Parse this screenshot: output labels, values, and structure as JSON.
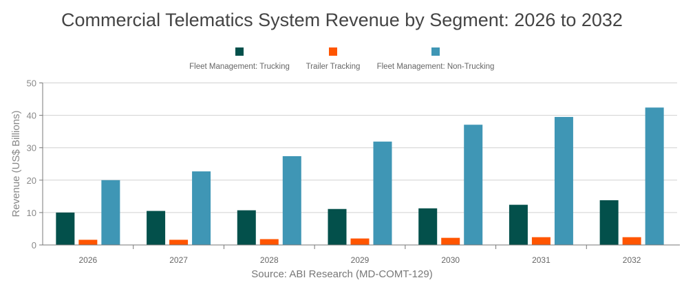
{
  "chart_data": {
    "type": "bar",
    "title": "Commercial Telematics System Revenue by Segment: 2026 to 2032",
    "source": "Source: ABI Research (MD-COMT-129)",
    "xlabel": "",
    "ylabel": "Revenue (US$ Billions)",
    "ylim": [
      0,
      50
    ],
    "yticks": [
      0,
      10,
      20,
      30,
      40,
      50
    ],
    "grid": true,
    "legend_position": "top",
    "categories": [
      "2026",
      "2027",
      "2028",
      "2029",
      "2030",
      "2031",
      "2032"
    ],
    "series": [
      {
        "name": "Fleet Management: Trucking",
        "color": "#03504b",
        "values": [
          10.0,
          10.5,
          10.7,
          11.1,
          11.3,
          12.4,
          13.8
        ]
      },
      {
        "name": "Trailer Tracking",
        "color": "#ff5500",
        "values": [
          1.6,
          1.6,
          1.8,
          2.0,
          2.2,
          2.4,
          2.4
        ]
      },
      {
        "name": "Fleet Management: Non-Trucking",
        "color": "#3f96b5",
        "values": [
          20.0,
          22.7,
          27.4,
          31.9,
          37.1,
          39.5,
          42.4
        ]
      }
    ]
  }
}
